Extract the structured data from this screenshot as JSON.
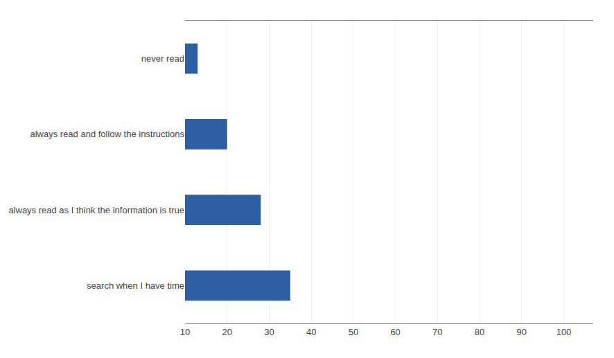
{
  "chart_data": {
    "type": "bar",
    "orientation": "horizontal",
    "categories": [
      "search when I have time",
      "always read as I think the information is true",
      "always read and follow the instructions",
      "never read"
    ],
    "values": [
      35,
      28,
      20,
      13
    ],
    "color": "#2E5FA3",
    "xlim": [
      10,
      107
    ],
    "xticks": [
      10,
      20,
      30,
      40,
      50,
      60,
      70,
      80,
      90,
      100
    ],
    "grid": true
  }
}
